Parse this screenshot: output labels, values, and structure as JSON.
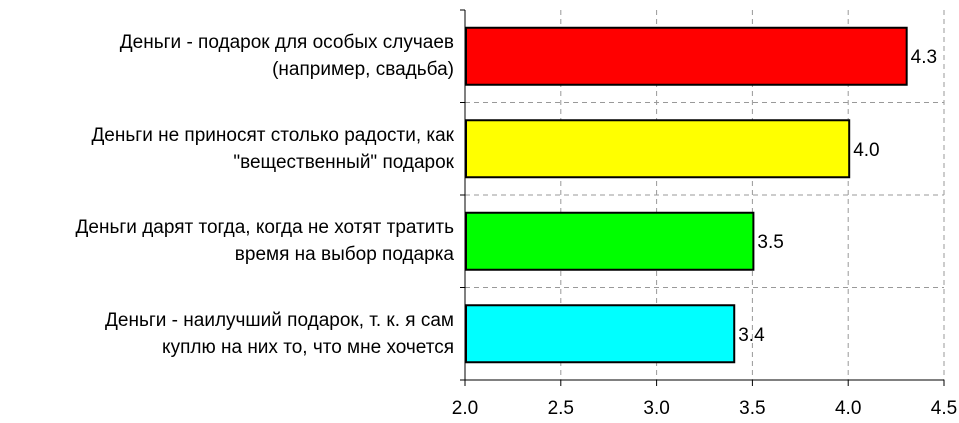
{
  "chart_data": {
    "type": "bar",
    "orientation": "horizontal",
    "categories": [
      "Деньги - подарок для особых случаев\n(например, свадьба)",
      "Деньги не приносят столько радости, как\n\"вещественный\" подарок",
      "Деньги дарят тогда, когда не хотят тратить\nвремя на выбор подарка",
      "Деньги - наилучший подарок, т. к. я сам\nкуплю на них то, что мне хочется"
    ],
    "values": [
      4.3,
      4.0,
      3.5,
      3.4
    ],
    "value_labels": [
      "4.3",
      "4.0",
      "3.5",
      "3.4"
    ],
    "colors": [
      "#ff0000",
      "#ffff00",
      "#00ff00",
      "#00ffff"
    ],
    "xlim": [
      2.0,
      4.5
    ],
    "xticks": [
      "2.0",
      "2.5",
      "3.0",
      "3.5",
      "4.0",
      "4.5"
    ],
    "grid": true,
    "grid_style": "dashed",
    "legend": false
  }
}
